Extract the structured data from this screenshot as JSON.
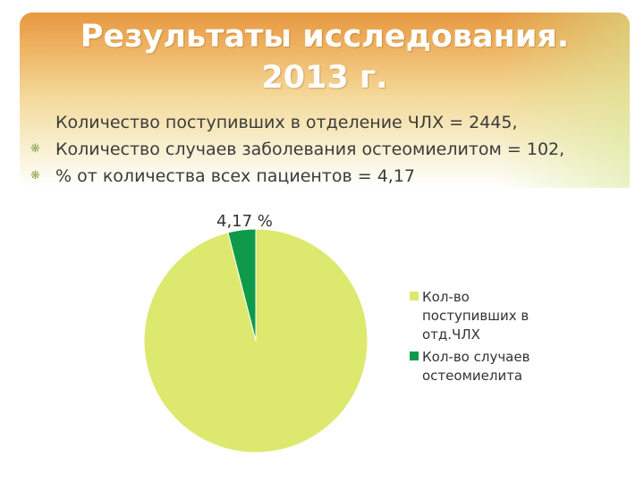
{
  "slide": {
    "title_line1": "Результаты исследования.",
    "title_line2": "2013 г.",
    "bullets": [
      "Количество поступивших в отделение ЧЛХ = 2445,",
      "Количество случаев заболевания остеомиелитом = 102,",
      "% от количества всех пациентов = 4,17"
    ]
  },
  "colors": {
    "slice_patients": "#dde86e",
    "slice_cases": "#0f9a4a",
    "title_band_top": "#e79840",
    "bullet_marker": "#8fa85a"
  },
  "chart_data": {
    "type": "pie",
    "title": "",
    "categories": [
      "Кол-во поступивших в отд.ЧЛХ",
      "Кол-во случаев остеомиелита"
    ],
    "values": [
      2445,
      102
    ],
    "legend_lines": [
      [
        "Кол-во",
        "поступивших в",
        "отд.ЧЛХ"
      ],
      [
        "Кол-во случаев",
        "остеомиелита"
      ]
    ],
    "data_label": "4,17 %",
    "legend_position": "right"
  }
}
